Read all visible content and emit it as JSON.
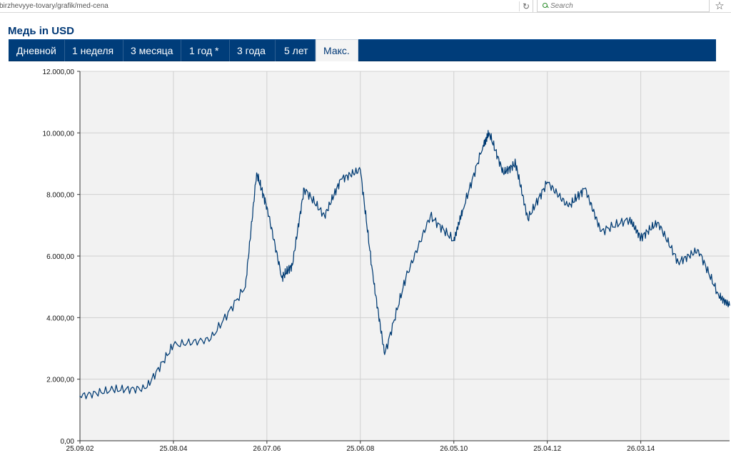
{
  "browser": {
    "url_text": "birzhevyye-tovary/grafik/med-cena",
    "reload_glyph": "↻",
    "search_placeholder": "Search",
    "star_glyph": "☆"
  },
  "page": {
    "title": "Медь in USD"
  },
  "tabs": [
    {
      "label": "Дневной",
      "active": false
    },
    {
      "label": "1 неделя",
      "active": false
    },
    {
      "label": "3 месяца",
      "active": false
    },
    {
      "label": "1 год *",
      "active": false
    },
    {
      "label": "3 года",
      "active": false
    },
    {
      "label": "5 лет",
      "active": false
    },
    {
      "label": "Макс.",
      "active": true
    }
  ],
  "colors": {
    "tab_bar": "#003d7a",
    "title": "#003876",
    "line": "#003b73",
    "grid": "#d0d0d0",
    "plot_bg": "#f2f2f2"
  },
  "icons": {
    "reload": "reload-icon",
    "search": "search-icon",
    "bookmark": "star-icon"
  },
  "chart_data": {
    "type": "line",
    "title": "",
    "xlabel": "",
    "ylabel": "",
    "x_tick_labels": [
      "25.09.02",
      "25.08.04",
      "26.07.06",
      "25.06.08",
      "26.05.10",
      "25.04.12",
      "26.03.14"
    ],
    "y_tick_labels": [
      "0,00",
      "2.000,00",
      "4.000,00",
      "6.000,00",
      "8.000,00",
      "10.000,00",
      "12.000,00"
    ],
    "ylim": [
      0,
      12000
    ],
    "grid": true,
    "x": [
      "2002-09-25",
      "2003-06-01",
      "2004-02-01",
      "2004-08-25",
      "2005-06-01",
      "2006-02-15",
      "2006-05-10",
      "2006-07-26",
      "2006-11-15",
      "2007-02-01",
      "2007-05-01",
      "2007-10-01",
      "2008-02-01",
      "2008-06-25",
      "2008-10-01",
      "2008-12-24",
      "2009-06-01",
      "2009-12-01",
      "2010-05-26",
      "2010-08-01",
      "2011-01-01",
      "2011-02-15",
      "2011-06-01",
      "2011-09-01",
      "2011-12-01",
      "2012-04-25",
      "2012-10-01",
      "2013-02-01",
      "2013-06-01",
      "2014-01-01",
      "2014-03-26",
      "2014-08-01",
      "2015-01-01",
      "2015-06-01",
      "2015-11-01",
      "2016-01-20"
    ],
    "values": [
      1450,
      1650,
      1700,
      3100,
      3300,
      5000,
      8700,
      7600,
      5300,
      5700,
      8200,
      7300,
      8500,
      8800,
      5200,
      2800,
      5300,
      7300,
      6500,
      7500,
      9600,
      10000,
      8700,
      9000,
      7200,
      8400,
      7600,
      8200,
      6800,
      7200,
      6600,
      7100,
      5800,
      6200,
      4700,
      4400
    ],
    "series": [
      {
        "values": [
          1450,
          1650,
          1700,
          3100,
          3300,
          5000,
          8700,
          7600,
          5300,
          5700,
          8200,
          7300,
          8500,
          8800,
          5200,
          2800,
          5300,
          7300,
          6500,
          7500,
          9600,
          10000,
          8700,
          9000,
          7200,
          8400,
          7600,
          8200,
          6800,
          7200,
          6600,
          7100,
          5800,
          6200,
          4700,
          4400
        ]
      }
    ]
  }
}
